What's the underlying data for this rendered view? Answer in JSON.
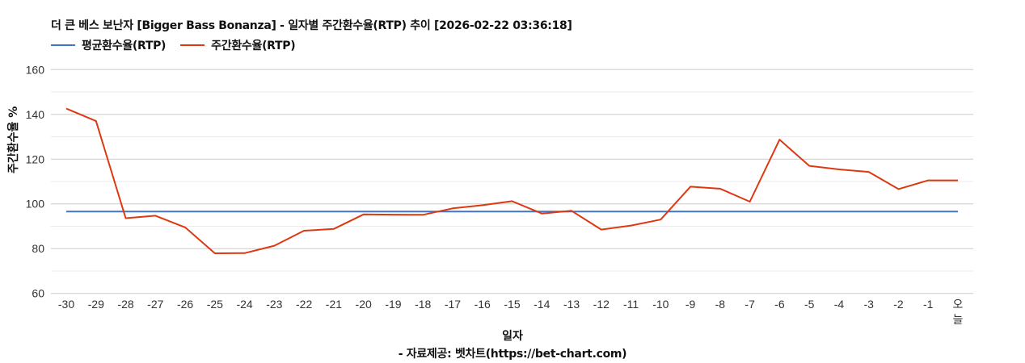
{
  "title": "더 큰 베스 보난자 [Bigger Bass Bonanza] - 일자별 주간환수율(RTP) 추이 [2026-02-22 03:36:18]",
  "legend": [
    {
      "label": "평균환수율(RTP)",
      "color": "#4472c4"
    },
    {
      "label": "주간환수율(RTP)",
      "color": "#dc3912"
    }
  ],
  "axes": {
    "ylabel": "주간환수율 %",
    "xlabel": "일자",
    "source": "- 자료제공: 벳차트(https://bet-chart.com)"
  },
  "colors": {
    "average": "#4472c4",
    "weekly": "#dc3912",
    "grid_major": "#cccccc",
    "grid_minor": "#ebebeb"
  },
  "chart_data": {
    "type": "line",
    "title": "더 큰 베스 보난자 [Bigger Bass Bonanza] - 일자별 주간환수율(RTP) 추이 [2026-02-22 03:36:18]",
    "xlabel": "일자",
    "ylabel": "주간환수율 %",
    "ylim": [
      60,
      160
    ],
    "yticks": [
      60,
      80,
      100,
      120,
      140,
      160
    ],
    "grid": true,
    "legend_position": "top-left",
    "categories": [
      "-30",
      "-29",
      "-28",
      "-27",
      "-26",
      "-25",
      "-24",
      "-23",
      "-22",
      "-21",
      "-20",
      "-19",
      "-18",
      "-17",
      "-16",
      "-15",
      "-14",
      "-13",
      "-12",
      "-11",
      "-10",
      "-9",
      "-8",
      "-7",
      "-6",
      "-5",
      "-4",
      "-3",
      "-2",
      "-1",
      "오늘"
    ],
    "series": [
      {
        "name": "평균환수율(RTP)",
        "color": "#4472c4",
        "values": [
          96.6,
          96.6,
          96.6,
          96.6,
          96.6,
          96.6,
          96.6,
          96.6,
          96.6,
          96.6,
          96.6,
          96.6,
          96.6,
          96.6,
          96.6,
          96.6,
          96.6,
          96.6,
          96.6,
          96.6,
          96.6,
          96.6,
          96.6,
          96.6,
          96.6,
          96.6,
          96.6,
          96.6,
          96.6,
          96.6,
          96.6
        ]
      },
      {
        "name": "주간환수율(RTP)",
        "color": "#dc3912",
        "values": [
          142.6,
          137.0,
          93.6,
          94.7,
          89.5,
          77.9,
          78.0,
          81.3,
          88.0,
          88.8,
          95.3,
          95.2,
          95.1,
          98.0,
          99.4,
          101.2,
          95.7,
          96.9,
          88.5,
          90.3,
          93.0,
          107.7,
          106.8,
          101.0,
          128.7,
          117.0,
          115.4,
          114.3,
          106.6,
          110.5,
          110.5
        ]
      }
    ]
  }
}
